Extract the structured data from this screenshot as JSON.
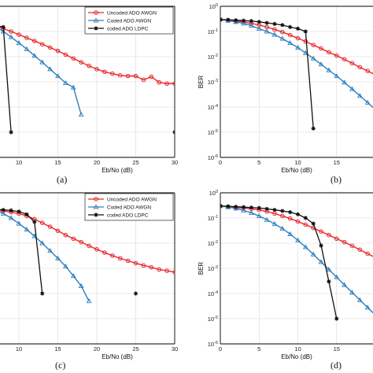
{
  "colors": {
    "uncoded": "#e8262a",
    "coded": "#2a7fc0",
    "ldpc": "#111111",
    "grid": "#d8d8d8"
  },
  "chart_data": [
    {
      "panel": "(a)",
      "type": "line",
      "xlabel": "Eb/No (dB)",
      "ylabel": "",
      "xlim": [
        0,
        30
      ],
      "y_scale": "log",
      "ylim": [
        1e-06,
        1
      ],
      "xticks": [
        "10",
        "15",
        "20",
        "25",
        "30"
      ],
      "yticks": [],
      "grid": true,
      "legend_position": "top-right",
      "series": [
        {
          "name": "Uncoded ADO AWGN",
          "marker": "circle",
          "color_key": "uncoded",
          "x": [
            7,
            8,
            9,
            10,
            11,
            12,
            13,
            14,
            15,
            16,
            17,
            18,
            19,
            20,
            21,
            22,
            23,
            24,
            25,
            26,
            27,
            28,
            29,
            30
          ],
          "y": [
            0.17,
            0.13,
            0.1,
            0.075,
            0.056,
            0.042,
            0.031,
            0.023,
            0.017,
            0.012,
            0.0085,
            0.006,
            0.0043,
            0.0032,
            0.0025,
            0.0021,
            0.0018,
            0.0017,
            0.0017,
            0.0012,
            0.0016,
            0.00095,
            0.00085,
            0.00085
          ]
        },
        {
          "name": "Coded ADO AWGN",
          "marker": "triangle",
          "color_key": "coded",
          "x": [
            7,
            8,
            9,
            10,
            11,
            12,
            13,
            14,
            15,
            16,
            17,
            18
          ],
          "y": [
            0.16,
            0.1,
            0.06,
            0.035,
            0.02,
            0.011,
            0.006,
            0.0032,
            0.0017,
            0.0009,
            0.0006,
            5e-05
          ]
        },
        {
          "name": "coded ADO LDPC",
          "marker": "star",
          "color_key": "ldpc",
          "x": [
            7,
            8,
            9
          ],
          "y": [
            0.17,
            0.15,
            1e-05
          ],
          "isolated_point": [
            30,
            1e-05
          ]
        }
      ]
    },
    {
      "panel": "(b)",
      "type": "line",
      "xlabel": "Eb/No (dB)",
      "ylabel": "BER",
      "xlim": [
        0,
        30
      ],
      "y_scale": "log",
      "ylim": [
        1e-06,
        1
      ],
      "xticks": [
        "0",
        "5",
        "10",
        "15"
      ],
      "yticks": [
        "10^0",
        "10^-1",
        "10^-2",
        "10^-3",
        "10^-4",
        "10^-5",
        "10^-6"
      ],
      "grid": true,
      "series": [
        {
          "marker": "circle",
          "color_key": "uncoded",
          "x": [
            0,
            1,
            2,
            3,
            4,
            5,
            6,
            7,
            8,
            9,
            10,
            11,
            12,
            13,
            14,
            15,
            16,
            17,
            18,
            19,
            20,
            21
          ],
          "y": [
            0.3,
            0.28,
            0.26,
            0.24,
            0.21,
            0.18,
            0.15,
            0.12,
            0.095,
            0.072,
            0.054,
            0.04,
            0.029,
            0.021,
            0.015,
            0.011,
            0.0078,
            0.0055,
            0.0038,
            0.0027,
            0.0019,
            0.0014
          ]
        },
        {
          "marker": "triangle",
          "color_key": "coded",
          "x": [
            0,
            1,
            2,
            3,
            4,
            5,
            6,
            7,
            8,
            9,
            10,
            11,
            12,
            13,
            14,
            15,
            16,
            17,
            18,
            19,
            20,
            21
          ],
          "y": [
            0.3,
            0.27,
            0.24,
            0.21,
            0.17,
            0.13,
            0.1,
            0.075,
            0.052,
            0.035,
            0.023,
            0.014,
            0.0085,
            0.005,
            0.0029,
            0.0017,
            0.00095,
            0.00052,
            0.00028,
            0.00015,
            8e-05,
            4e-05
          ]
        },
        {
          "marker": "star",
          "color_key": "ldpc",
          "x": [
            0,
            1,
            2,
            3,
            4,
            5,
            6,
            7,
            8,
            9,
            10,
            11,
            12
          ],
          "y": [
            0.3,
            0.29,
            0.28,
            0.27,
            0.26,
            0.24,
            0.22,
            0.2,
            0.18,
            0.15,
            0.13,
            0.1,
            1.4e-05
          ]
        }
      ]
    },
    {
      "panel": "(c)",
      "type": "line",
      "xlabel": "Eb/No (dB)",
      "ylabel": "",
      "xlim": [
        0,
        30
      ],
      "y_scale": "log",
      "ylim": [
        1e-06,
        1
      ],
      "xticks": [
        "10",
        "15",
        "20",
        "25",
        "30"
      ],
      "yticks": [],
      "grid": true,
      "legend_position": "top-right",
      "series": [
        {
          "name": "Uncoded ADO AWGN",
          "marker": "circle",
          "color_key": "uncoded",
          "x": [
            7,
            8,
            9,
            10,
            11,
            12,
            13,
            14,
            15,
            16,
            17,
            18,
            19,
            20,
            21,
            22,
            23,
            24,
            25,
            26,
            27,
            28,
            29,
            30
          ],
          "y": [
            0.21,
            0.19,
            0.17,
            0.15,
            0.12,
            0.09,
            0.064,
            0.045,
            0.031,
            0.021,
            0.015,
            0.011,
            0.0078,
            0.0057,
            0.0042,
            0.0032,
            0.0025,
            0.002,
            0.0016,
            0.0013,
            0.0011,
            0.0009,
            0.0008,
            0.0007
          ]
        },
        {
          "name": "Coded ADO AWGN",
          "marker": "triangle",
          "color_key": "coded",
          "x": [
            7,
            8,
            9,
            10,
            11,
            12,
            13,
            14,
            15,
            16,
            17,
            18,
            19
          ],
          "y": [
            0.2,
            0.15,
            0.1,
            0.06,
            0.035,
            0.019,
            0.01,
            0.005,
            0.0025,
            0.0012,
            0.0005,
            0.0002,
            5e-05
          ]
        },
        {
          "name": "coded ADO LDPC",
          "marker": "star",
          "color_key": "ldpc",
          "x": [
            7,
            8,
            9,
            10,
            11,
            12,
            13
          ],
          "y": [
            0.22,
            0.21,
            0.2,
            0.18,
            0.14,
            0.07,
            0.0001
          ],
          "isolated_point": [
            25,
            0.0001
          ]
        }
      ]
    },
    {
      "panel": "(d)",
      "type": "line",
      "xlabel": "Eb/No (dB)",
      "ylabel": "BER",
      "xlim": [
        0,
        30
      ],
      "y_scale": "log",
      "ylim": [
        1e-06,
        1
      ],
      "xticks": [
        "0",
        "5",
        "10",
        "15"
      ],
      "yticks": [
        "10^0",
        "10^-1",
        "10^-2",
        "10^-3",
        "10^-4",
        "10^-5",
        "10^-6"
      ],
      "grid": true,
      "series": [
        {
          "marker": "circle",
          "color_key": "uncoded",
          "x": [
            0,
            1,
            2,
            3,
            4,
            5,
            6,
            7,
            8,
            9,
            10,
            11,
            12,
            13,
            14,
            15,
            16,
            17,
            18,
            19,
            20,
            21
          ],
          "y": [
            0.3,
            0.28,
            0.26,
            0.25,
            0.23,
            0.21,
            0.18,
            0.15,
            0.12,
            0.095,
            0.072,
            0.054,
            0.04,
            0.029,
            0.021,
            0.015,
            0.011,
            0.0078,
            0.0055,
            0.0038,
            0.0027,
            0.0019
          ]
        },
        {
          "marker": "triangle",
          "color_key": "coded",
          "x": [
            0,
            1,
            2,
            3,
            4,
            5,
            6,
            7,
            8,
            9,
            10,
            11,
            12,
            13,
            14,
            15,
            16,
            17,
            18,
            19,
            20,
            21
          ],
          "y": [
            0.3,
            0.27,
            0.24,
            0.2,
            0.16,
            0.12,
            0.085,
            0.058,
            0.038,
            0.023,
            0.013,
            0.007,
            0.0036,
            0.0018,
            0.0009,
            0.00045,
            0.00022,
            0.00011,
            5.5e-05,
            2.8e-05,
            1.4e-05,
            7e-06
          ]
        },
        {
          "marker": "star",
          "color_key": "ldpc",
          "x": [
            0,
            1,
            2,
            3,
            4,
            5,
            6,
            7,
            8,
            9,
            10,
            11,
            12,
            13,
            14,
            15
          ],
          "y": [
            0.3,
            0.29,
            0.28,
            0.27,
            0.26,
            0.25,
            0.23,
            0.21,
            0.19,
            0.17,
            0.14,
            0.1,
            0.06,
            0.008,
            0.0003,
            1e-05
          ]
        }
      ]
    }
  ]
}
